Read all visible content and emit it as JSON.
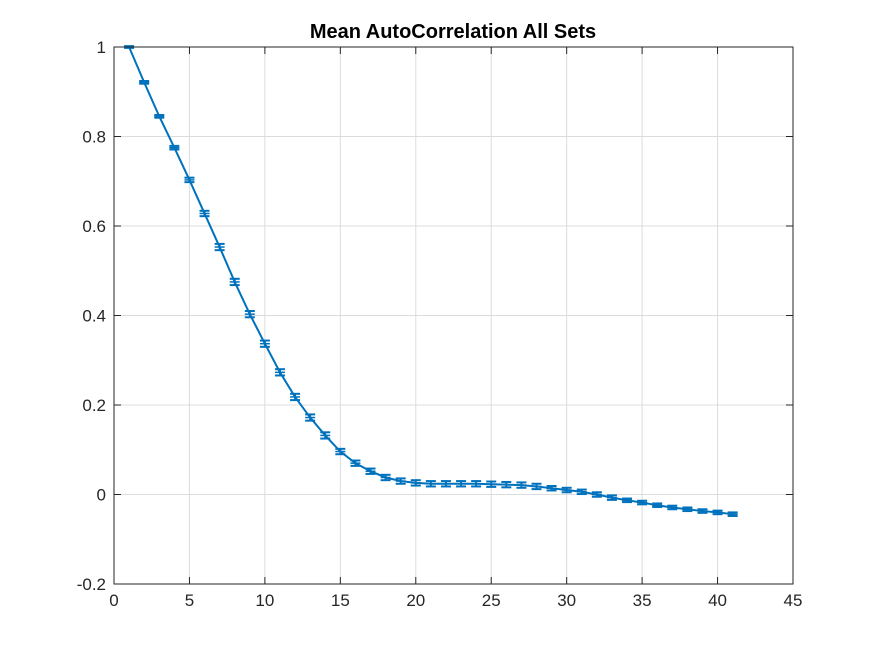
{
  "chart_data": {
    "type": "line",
    "title": "Mean AutoCorrelation All Sets",
    "xlabel": "",
    "ylabel": "",
    "xlim": [
      0,
      45
    ],
    "ylim": [
      -0.2,
      1
    ],
    "xticks": [
      0,
      5,
      10,
      15,
      20,
      25,
      30,
      35,
      40,
      45
    ],
    "xtick_labels": [
      "0",
      "5",
      "10",
      "15",
      "20",
      "25",
      "30",
      "35",
      "40",
      "45"
    ],
    "yticks": [
      -0.2,
      0,
      0.2,
      0.4,
      0.6,
      0.8,
      1
    ],
    "ytick_labels": [
      "-0.2",
      "0",
      "0.2",
      "0.4",
      "0.6",
      "0.8",
      "1"
    ],
    "grid": true,
    "color": "#0072BD",
    "series": [
      {
        "x": [
          1,
          2,
          3,
          4,
          5,
          6,
          7,
          8,
          9,
          10,
          11,
          12,
          13,
          14,
          15,
          16,
          17,
          18,
          19,
          20,
          21,
          22,
          23,
          24,
          25,
          26,
          27,
          28,
          29,
          30,
          31,
          32,
          33,
          34,
          35,
          36,
          37,
          38,
          39,
          40,
          41
        ],
        "y": [
          1.0,
          0.921,
          0.845,
          0.775,
          0.703,
          0.628,
          0.553,
          0.475,
          0.403,
          0.337,
          0.273,
          0.218,
          0.172,
          0.132,
          0.096,
          0.07,
          0.052,
          0.038,
          0.03,
          0.026,
          0.024,
          0.024,
          0.024,
          0.024,
          0.023,
          0.022,
          0.021,
          0.018,
          0.014,
          0.01,
          0.006,
          0.0,
          -0.007,
          -0.013,
          -0.018,
          -0.024,
          -0.029,
          -0.033,
          -0.037,
          -0.04,
          -0.044
        ],
        "err": [
          0.002,
          0.003,
          0.003,
          0.004,
          0.005,
          0.006,
          0.007,
          0.007,
          0.007,
          0.007,
          0.007,
          0.007,
          0.007,
          0.007,
          0.006,
          0.006,
          0.006,
          0.006,
          0.006,
          0.006,
          0.006,
          0.006,
          0.006,
          0.006,
          0.006,
          0.006,
          0.006,
          0.006,
          0.005,
          0.005,
          0.005,
          0.005,
          0.005,
          0.004,
          0.004,
          0.004,
          0.004,
          0.004,
          0.004,
          0.004,
          0.004
        ]
      }
    ]
  }
}
